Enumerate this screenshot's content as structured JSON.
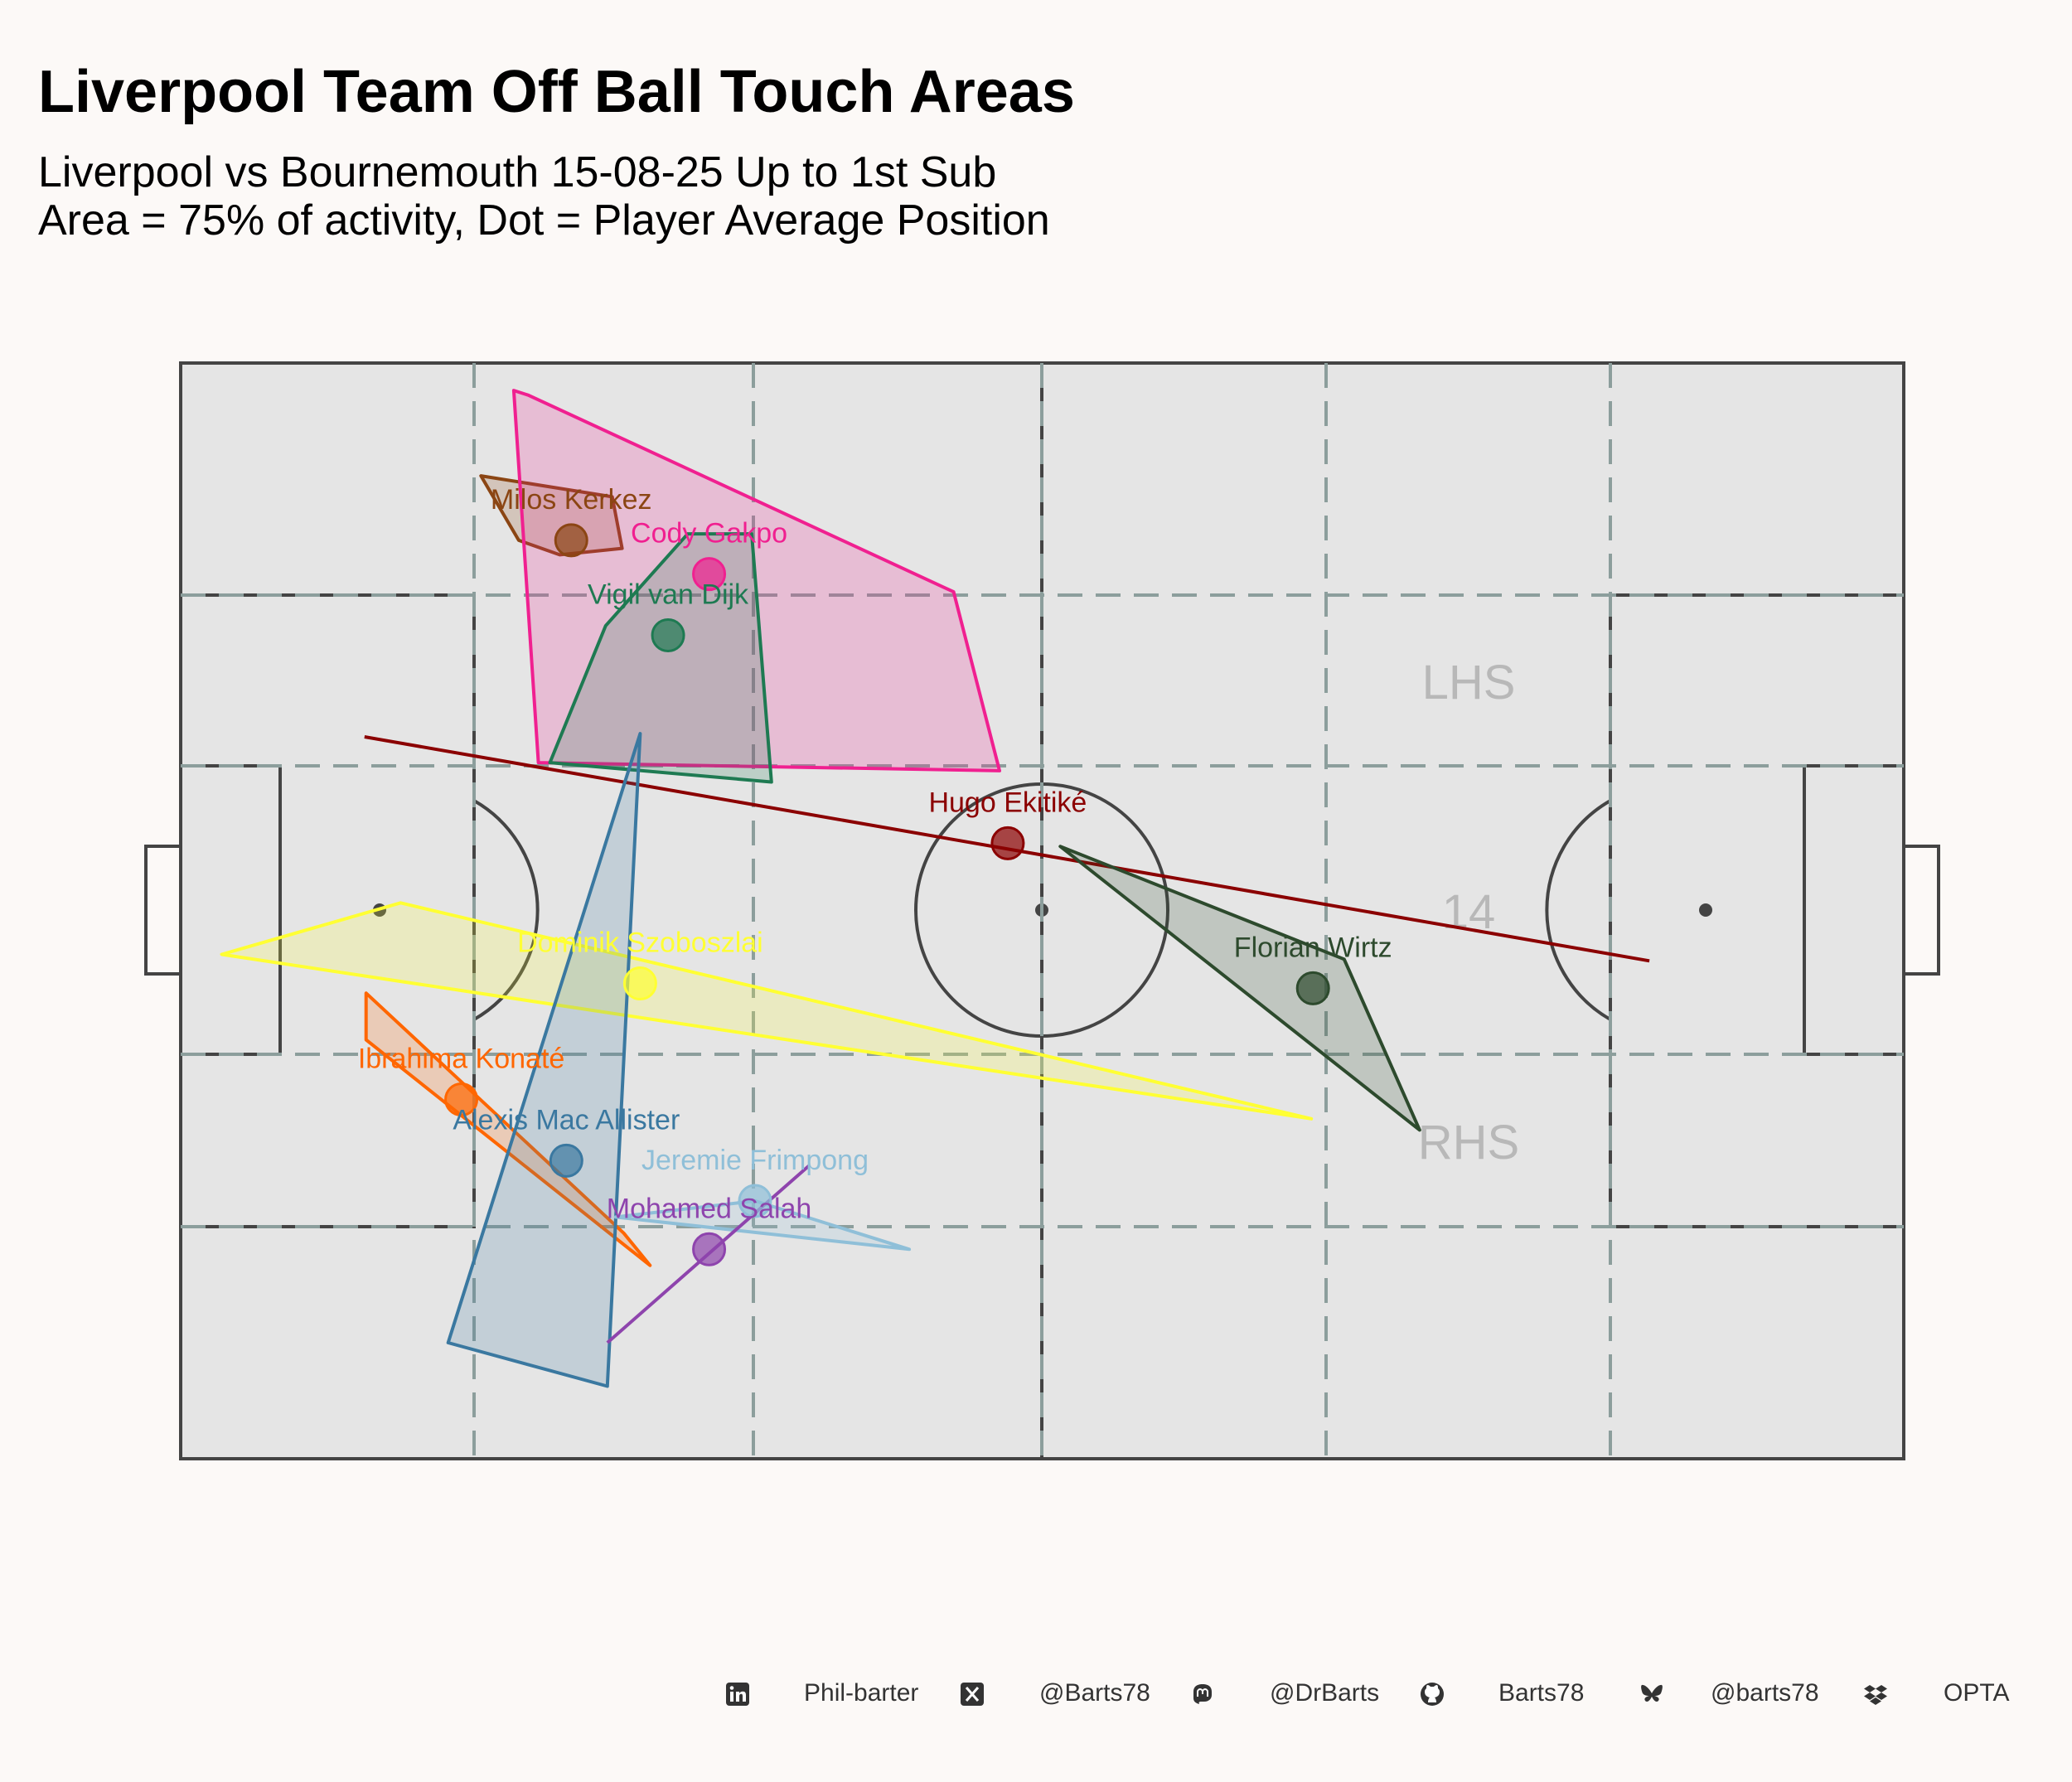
{
  "header": {
    "title": "Liverpool Team Off Ball Touch Areas",
    "subtitle_line1": "Liverpool vs Bournemouth 15-08-25 Up to 1st Sub",
    "subtitle_line2": "Area = 75% of activity, Dot = Player Average Position"
  },
  "pitch": {
    "zone_labels": {
      "top": "LHS",
      "middle": "14",
      "bottom": "RHS"
    },
    "length": 105,
    "width": 68
  },
  "chart_data": {
    "type": "scatter",
    "title": "Liverpool Team Off Ball Touch Areas",
    "x_range": [
      0,
      105
    ],
    "y_range": [
      0,
      68
    ],
    "colors": {
      "background": "#fcf9f7",
      "pitch": "#e5e5e5",
      "lines": "#444444",
      "grid": "#8c9e9c"
    },
    "players": [
      {
        "name": "Milos Kerkez",
        "color": "#8b4513",
        "avg": [
          23.8,
          57.0
        ],
        "area": [
          [
            18.3,
            61.0
          ],
          [
            26.3,
            59.7
          ],
          [
            26.9,
            56.5
          ],
          [
            23.1,
            56.1
          ],
          [
            20.6,
            57.0
          ]
        ]
      },
      {
        "name": "Cody Gakpo",
        "color": "#f02090",
        "avg": [
          32.2,
          54.9
        ],
        "area": [
          [
            20.3,
            66.3
          ],
          [
            21.2,
            66.0
          ],
          [
            47.1,
            53.8
          ],
          [
            49.9,
            42.7
          ],
          [
            21.8,
            43.2
          ]
        ]
      },
      {
        "name": "Vigil van Dijk",
        "color": "#1e7a52",
        "avg": [
          29.7,
          51.1
        ],
        "area": [
          [
            25.9,
            51.7
          ],
          [
            30.9,
            57.4
          ],
          [
            34.8,
            57.4
          ],
          [
            36.0,
            42.0
          ],
          [
            22.5,
            43.2
          ]
        ]
      },
      {
        "name": "Hugo Ekitiké",
        "color": "#8b0000",
        "avg": [
          50.4,
          38.2
        ],
        "area": [
          [
            11.2,
            44.8
          ],
          [
            89.5,
            30.9
          ]
        ]
      },
      {
        "name": "Florian Wirtz",
        "color": "#2d4a2d",
        "avg": [
          69.0,
          29.2
        ],
        "area": [
          [
            53.6,
            38.0
          ],
          [
            70.9,
            31.0
          ],
          [
            75.5,
            20.4
          ]
        ]
      },
      {
        "name": "Dominik Szoboszlai",
        "color": "#ffff33",
        "avg": [
          28.0,
          29.5
        ],
        "area": [
          [
            13.4,
            34.5
          ],
          [
            2.5,
            31.3
          ],
          [
            68.9,
            21.1
          ]
        ]
      },
      {
        "name": "Ibrahima Konaté",
        "color": "#ff6600",
        "avg": [
          17.1,
          22.3
        ],
        "area": [
          [
            11.3,
            28.9
          ],
          [
            11.3,
            26.0
          ],
          [
            28.6,
            12.0
          ],
          [
            27.0,
            14.0
          ]
        ]
      },
      {
        "name": "Alexis Mac Allister",
        "color": "#3a78a0",
        "avg": [
          23.5,
          18.5
        ],
        "area": [
          [
            28.0,
            45.0
          ],
          [
            26.0,
            4.5
          ],
          [
            16.3,
            7.2
          ]
        ]
      },
      {
        "name": "Jeremie Frimpong",
        "color": "#8fbfd8",
        "avg": [
          35.0,
          16.0
        ],
        "area": [
          [
            26.5,
            15.0
          ],
          [
            44.4,
            13.0
          ],
          [
            35.0,
            16.0
          ]
        ]
      },
      {
        "name": "Mohamed Salah",
        "color": "#8e44ad",
        "avg": [
          32.2,
          13.0
        ],
        "area": [
          [
            38.3,
            18.2
          ],
          [
            26.0,
            7.2
          ]
        ]
      }
    ]
  },
  "footer": {
    "items": [
      {
        "icon": "linkedin-icon",
        "text": "Phil-barter"
      },
      {
        "icon": "x-twitter-icon",
        "text": "@Barts78"
      },
      {
        "icon": "mastodon-icon",
        "text": "@DrBarts"
      },
      {
        "icon": "github-icon",
        "text": "Barts78"
      },
      {
        "icon": "bluesky-icon",
        "text": "@barts78"
      },
      {
        "icon": "dropbox-icon",
        "text": "OPTA"
      }
    ]
  }
}
